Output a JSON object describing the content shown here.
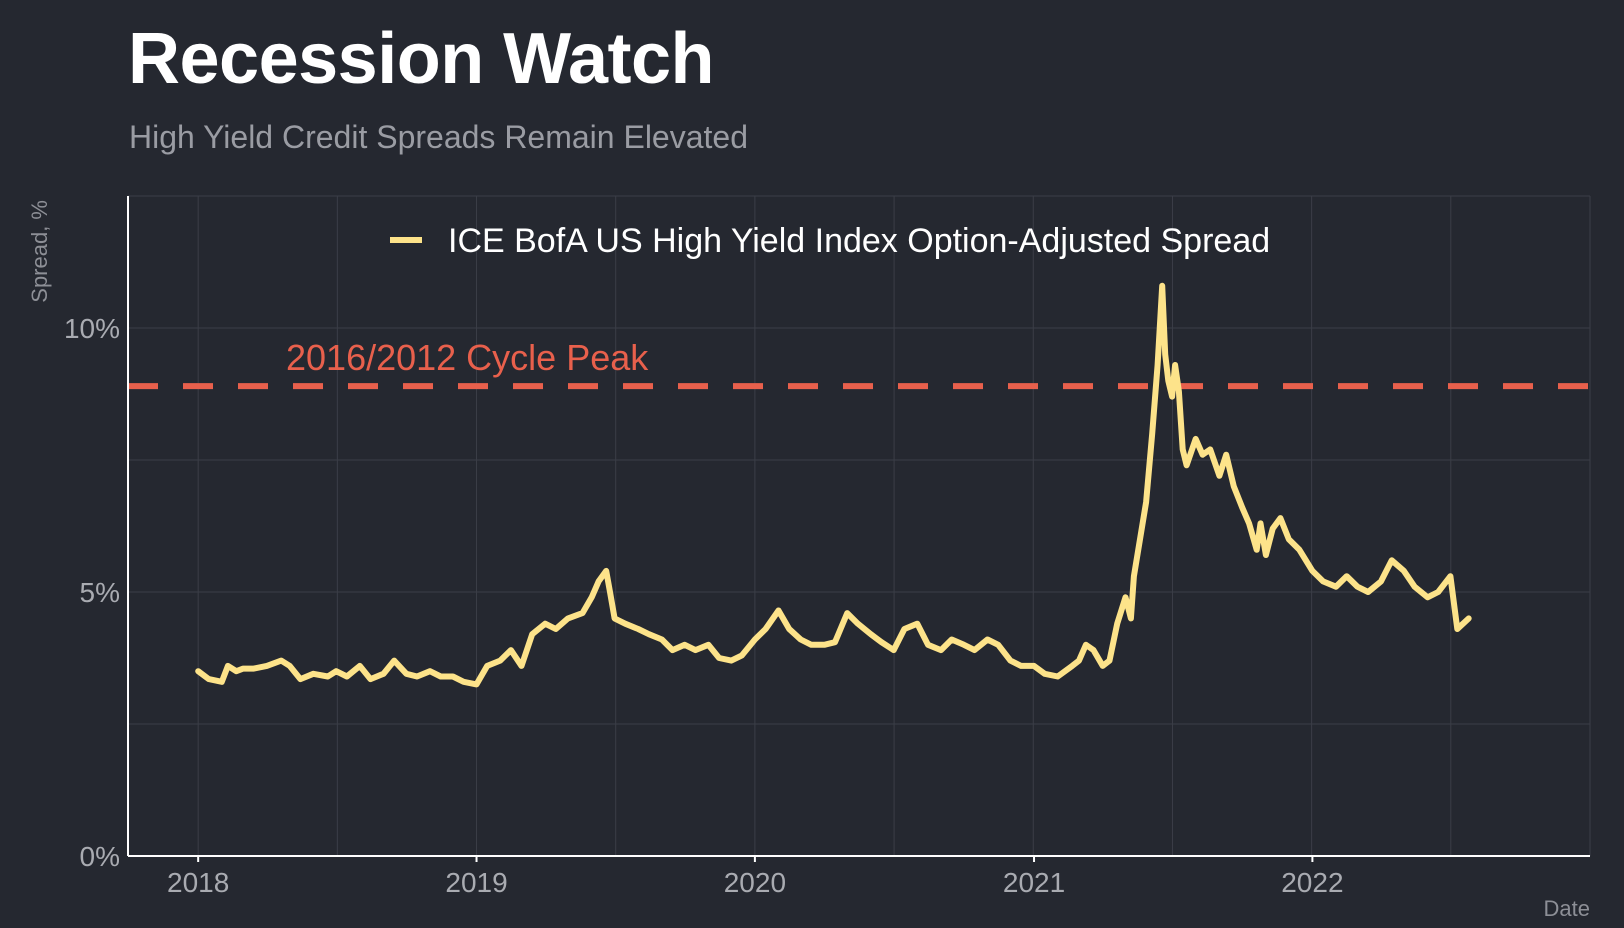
{
  "chart_data": {
    "type": "line",
    "title": "Recession Watch",
    "subtitle": "High Yield Credit Spreads Remain Elevated",
    "xlabel": "Date",
    "ylabel": "Spread, %",
    "xlim": [
      "2017-10-01",
      "2022-12-31"
    ],
    "ylim": [
      0,
      12.5
    ],
    "x_ticks": [
      "2018-01-01",
      "2019-01-01",
      "2020-01-01",
      "2021-01-01",
      "2022-01-01"
    ],
    "x_tick_labels": [
      "2018",
      "2019",
      "2020",
      "2021",
      "2022"
    ],
    "y_ticks": [
      0,
      5,
      10
    ],
    "y_tick_labels": [
      "0%",
      "5%",
      "10%"
    ],
    "grid": true,
    "legend_position": "top",
    "colors": {
      "background": "#252830",
      "line": "#fde38a",
      "reference": "#e8604c",
      "grid": "#3b3e47",
      "axis": "#ffffff"
    },
    "reference_line": {
      "value": 8.9,
      "label": "2016/2012 Cycle Peak"
    },
    "series": [
      {
        "name": "ICE BofA US High Yield Index Option-Adjusted Spread",
        "points": [
          [
            "2018-01-01",
            3.5
          ],
          [
            "2018-01-15",
            3.35
          ],
          [
            "2018-02-01",
            3.3
          ],
          [
            "2018-02-09",
            3.6
          ],
          [
            "2018-02-20",
            3.5
          ],
          [
            "2018-03-01",
            3.55
          ],
          [
            "2018-03-15",
            3.55
          ],
          [
            "2018-04-01",
            3.6
          ],
          [
            "2018-04-20",
            3.7
          ],
          [
            "2018-05-01",
            3.6
          ],
          [
            "2018-05-15",
            3.35
          ],
          [
            "2018-06-01",
            3.45
          ],
          [
            "2018-06-20",
            3.4
          ],
          [
            "2018-07-01",
            3.5
          ],
          [
            "2018-07-15",
            3.4
          ],
          [
            "2018-08-01",
            3.6
          ],
          [
            "2018-08-15",
            3.35
          ],
          [
            "2018-09-01",
            3.45
          ],
          [
            "2018-09-15",
            3.7
          ],
          [
            "2018-10-01",
            3.45
          ],
          [
            "2018-10-15",
            3.4
          ],
          [
            "2018-11-01",
            3.5
          ],
          [
            "2018-11-15",
            3.4
          ],
          [
            "2018-12-01",
            3.4
          ],
          [
            "2018-12-15",
            3.3
          ],
          [
            "2019-01-01",
            3.25
          ],
          [
            "2019-01-15",
            3.6
          ],
          [
            "2019-02-01",
            3.7
          ],
          [
            "2019-02-15",
            3.9
          ],
          [
            "2019-03-01",
            3.6
          ],
          [
            "2019-03-15",
            4.2
          ],
          [
            "2019-04-01",
            4.4
          ],
          [
            "2019-04-15",
            4.3
          ],
          [
            "2019-05-01",
            4.5
          ],
          [
            "2019-05-20",
            4.6
          ],
          [
            "2019-06-01",
            4.9
          ],
          [
            "2019-06-10",
            5.2
          ],
          [
            "2019-06-20",
            5.4
          ],
          [
            "2019-06-25",
            5.0
          ],
          [
            "2019-07-01",
            4.5
          ],
          [
            "2019-07-15",
            4.4
          ],
          [
            "2019-08-01",
            4.3
          ],
          [
            "2019-08-15",
            4.2
          ],
          [
            "2019-09-01",
            4.1
          ],
          [
            "2019-09-15",
            3.9
          ],
          [
            "2019-10-01",
            4.0
          ],
          [
            "2019-10-15",
            3.9
          ],
          [
            "2019-11-01",
            4.0
          ],
          [
            "2019-11-15",
            3.75
          ],
          [
            "2019-12-01",
            3.7
          ],
          [
            "2019-12-15",
            3.8
          ],
          [
            "2020-01-01",
            4.1
          ],
          [
            "2020-01-15",
            4.3
          ],
          [
            "2020-02-01",
            4.65
          ],
          [
            "2020-02-15",
            4.3
          ],
          [
            "2020-03-01",
            4.1
          ],
          [
            "2020-03-15",
            4.0
          ],
          [
            "2020-04-01",
            4.0
          ],
          [
            "2020-04-15",
            4.05
          ],
          [
            "2020-05-01",
            4.6
          ],
          [
            "2020-05-15",
            4.4
          ],
          [
            "2020-06-01",
            4.2
          ],
          [
            "2020-06-15",
            4.05
          ],
          [
            "2020-07-01",
            3.9
          ],
          [
            "2020-07-15",
            4.3
          ],
          [
            "2020-08-01",
            4.4
          ],
          [
            "2020-08-15",
            4.0
          ],
          [
            "2020-09-01",
            3.9
          ],
          [
            "2020-09-15",
            4.1
          ],
          [
            "2020-10-01",
            4.0
          ],
          [
            "2020-10-15",
            3.9
          ],
          [
            "2020-11-01",
            4.1
          ],
          [
            "2020-11-15",
            4.0
          ],
          [
            "2020-12-01",
            3.7
          ],
          [
            "2020-12-15",
            3.6
          ],
          [
            "2021-01-01",
            3.6
          ],
          [
            "2021-01-15",
            3.45
          ],
          [
            "2021-02-01",
            3.4
          ],
          [
            "2021-02-20",
            3.6
          ],
          [
            "2021-03-01",
            3.7
          ],
          [
            "2021-03-10",
            4.0
          ],
          [
            "2021-03-20",
            3.9
          ],
          [
            "2021-04-01",
            3.6
          ],
          [
            "2021-04-10",
            3.7
          ],
          [
            "2021-04-20",
            4.4
          ],
          [
            "2021-05-01",
            4.9
          ],
          [
            "2021-05-08",
            4.5
          ],
          [
            "2021-05-12",
            5.3
          ],
          [
            "2021-05-20",
            6.0
          ],
          [
            "2021-05-28",
            6.7
          ],
          [
            "2021-06-05",
            8.0
          ],
          [
            "2021-06-12",
            9.3
          ],
          [
            "2021-06-18",
            10.8
          ],
          [
            "2021-06-22",
            9.5
          ],
          [
            "2021-06-26",
            9.0
          ],
          [
            "2021-07-01",
            8.7
          ],
          [
            "2021-07-05",
            9.3
          ],
          [
            "2021-07-10",
            8.8
          ],
          [
            "2021-07-15",
            7.7
          ],
          [
            "2021-07-20",
            7.4
          ],
          [
            "2021-08-01",
            7.9
          ],
          [
            "2021-08-10",
            7.6
          ],
          [
            "2021-08-20",
            7.7
          ],
          [
            "2021-09-01",
            7.2
          ],
          [
            "2021-09-10",
            7.6
          ],
          [
            "2021-09-20",
            7.0
          ],
          [
            "2021-10-01",
            6.6
          ],
          [
            "2021-10-10",
            6.3
          ],
          [
            "2021-10-20",
            5.8
          ],
          [
            "2021-10-25",
            6.3
          ],
          [
            "2021-11-01",
            5.7
          ],
          [
            "2021-11-10",
            6.2
          ],
          [
            "2021-11-20",
            6.4
          ],
          [
            "2021-12-01",
            6.0
          ],
          [
            "2021-12-15",
            5.8
          ],
          [
            "2022-01-01",
            5.4
          ],
          [
            "2022-01-15",
            5.2
          ],
          [
            "2022-02-01",
            5.1
          ],
          [
            "2022-02-15",
            5.3
          ],
          [
            "2022-03-01",
            5.1
          ],
          [
            "2022-03-15",
            5.0
          ],
          [
            "2022-04-01",
            5.2
          ],
          [
            "2022-04-15",
            5.6
          ],
          [
            "2022-05-01",
            5.4
          ],
          [
            "2022-05-15",
            5.1
          ],
          [
            "2022-06-01",
            4.9
          ],
          [
            "2022-06-15",
            5.0
          ],
          [
            "2022-07-01",
            5.3
          ],
          [
            "2022-07-10",
            4.3
          ],
          [
            "2022-07-25",
            4.5
          ]
        ]
      }
    ]
  }
}
